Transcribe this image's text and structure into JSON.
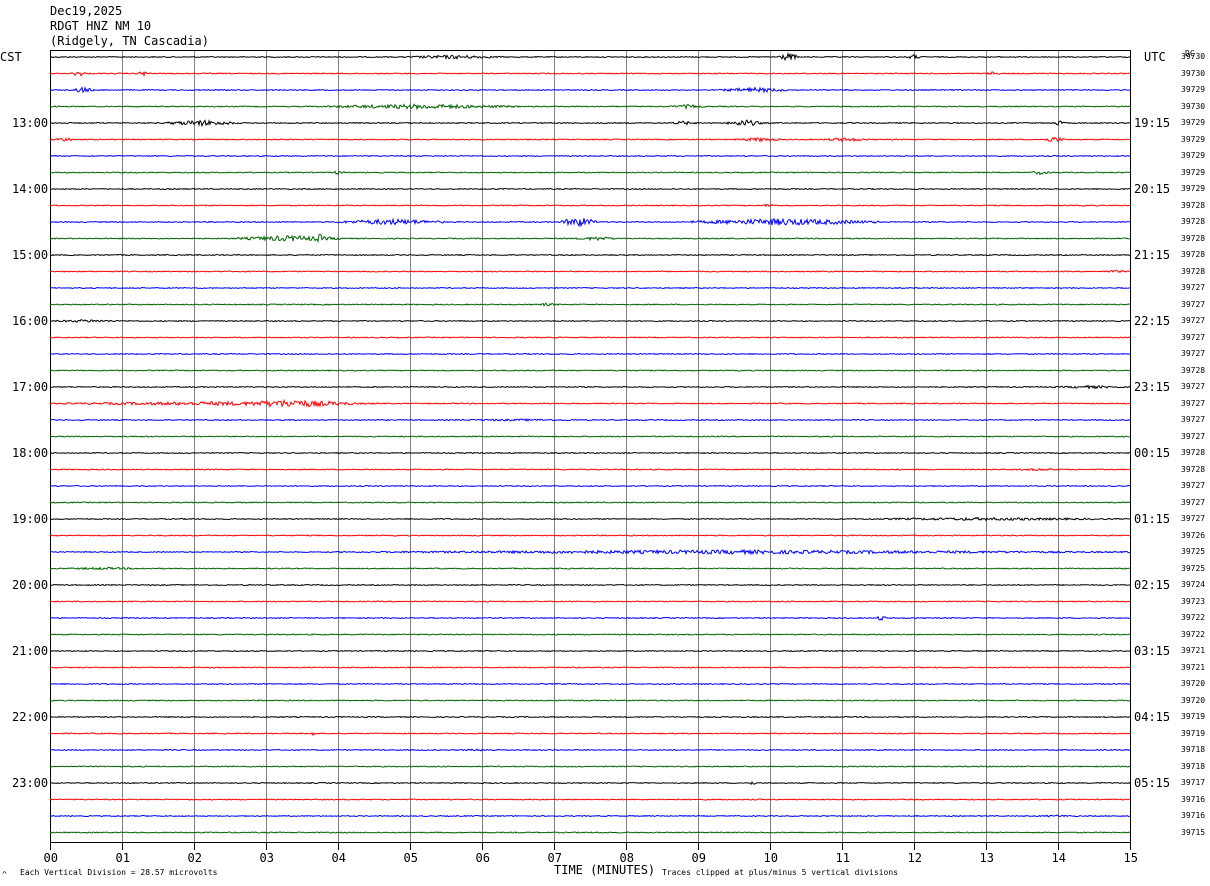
{
  "header": {
    "date": "Dec19,2025",
    "station": "RDGT HNZ NM 10",
    "location": "(Ridgely, TN Cascadia)"
  },
  "left_tz": "CST",
  "right_tz": "UTC",
  "dc_label": "DC",
  "footer": {
    "scale": "Each Vertical Division =   28.57 microvolts",
    "clip": "Traces clipped at plus/minus 5 vertical divisions",
    "corner_mark": "^"
  },
  "colors": {
    "trace_cycle": [
      "#000000",
      "#ff0000",
      "#0000ff",
      "#006400"
    ],
    "grid": "#808080"
  },
  "chart_data": {
    "type": "line",
    "title": "",
    "xlabel": "TIME (MINUTES)",
    "ylabel": "",
    "x_ticks": [
      "00",
      "01",
      "02",
      "03",
      "04",
      "05",
      "06",
      "07",
      "08",
      "09",
      "10",
      "11",
      "12",
      "13",
      "14",
      "15"
    ],
    "xlim": [
      0,
      15
    ],
    "grid": true,
    "left_time_labels": [
      {
        "row": 4,
        "label": "13:00"
      },
      {
        "row": 8,
        "label": "14:00"
      },
      {
        "row": 12,
        "label": "15:00"
      },
      {
        "row": 16,
        "label": "16:00"
      },
      {
        "row": 20,
        "label": "17:00"
      },
      {
        "row": 24,
        "label": "18:00"
      },
      {
        "row": 28,
        "label": "19:00"
      },
      {
        "row": 32,
        "label": "20:00"
      },
      {
        "row": 36,
        "label": "21:00"
      },
      {
        "row": 40,
        "label": "22:00"
      },
      {
        "row": 44,
        "label": "23:00"
      }
    ],
    "right_time_labels": [
      {
        "row": 4,
        "label": "19:15"
      },
      {
        "row": 8,
        "label": "20:15"
      },
      {
        "row": 12,
        "label": "21:15"
      },
      {
        "row": 16,
        "label": "22:15"
      },
      {
        "row": 20,
        "label": "23:15"
      },
      {
        "row": 24,
        "label": "00:15"
      },
      {
        "row": 28,
        "label": "01:15"
      },
      {
        "row": 32,
        "label": "02:15"
      },
      {
        "row": 36,
        "label": "03:15"
      },
      {
        "row": 40,
        "label": "04:15"
      },
      {
        "row": 44,
        "label": "05:15"
      }
    ],
    "dc_offsets": [
      39730,
      39730,
      39729,
      39730,
      39729,
      39729,
      39729,
      39729,
      39729,
      39728,
      39728,
      39728,
      39728,
      39728,
      39727,
      39727,
      39727,
      39727,
      39727,
      39728,
      39727,
      39727,
      39727,
      39727,
      39728,
      39728,
      39727,
      39727,
      39727,
      39726,
      39725,
      39725,
      39724,
      39723,
      39722,
      39722,
      39721,
      39721,
      39720,
      39720,
      39719,
      39719,
      39718,
      39718,
      39717,
      39716,
      39716,
      39715
    ],
    "events": [
      {
        "row": 0,
        "start": 4.9,
        "end": 6.3,
        "amp": 2.0
      },
      {
        "row": 0,
        "start": 10.1,
        "end": 10.4,
        "amp": 4.0
      },
      {
        "row": 0,
        "start": 11.9,
        "end": 12.1,
        "amp": 2.5
      },
      {
        "row": 1,
        "start": 0.3,
        "end": 0.5,
        "amp": 3.0
      },
      {
        "row": 1,
        "start": 1.2,
        "end": 1.4,
        "amp": 2.5
      },
      {
        "row": 1,
        "start": 13.0,
        "end": 13.2,
        "amp": 2.0
      },
      {
        "row": 2,
        "start": 0.3,
        "end": 0.6,
        "amp": 3.0
      },
      {
        "row": 2,
        "start": 9.3,
        "end": 10.3,
        "amp": 2.5
      },
      {
        "row": 3,
        "start": 3.8,
        "end": 6.5,
        "amp": 2.5
      },
      {
        "row": 3,
        "start": 8.6,
        "end": 9.1,
        "amp": 2.0
      },
      {
        "row": 4,
        "start": 1.6,
        "end": 2.6,
        "amp": 3.0
      },
      {
        "row": 4,
        "start": 8.6,
        "end": 9.0,
        "amp": 2.0
      },
      {
        "row": 4,
        "start": 9.4,
        "end": 9.9,
        "amp": 3.5
      },
      {
        "row": 4,
        "start": 13.9,
        "end": 14.1,
        "amp": 2.5
      },
      {
        "row": 5,
        "start": 0.0,
        "end": 0.4,
        "amp": 2.0
      },
      {
        "row": 5,
        "start": 9.5,
        "end": 10.2,
        "amp": 2.0
      },
      {
        "row": 5,
        "start": 10.7,
        "end": 11.4,
        "amp": 2.0
      },
      {
        "row": 5,
        "start": 13.8,
        "end": 14.1,
        "amp": 3.0
      },
      {
        "row": 7,
        "start": 3.9,
        "end": 4.1,
        "amp": 2.0
      },
      {
        "row": 7,
        "start": 13.6,
        "end": 13.9,
        "amp": 2.0
      },
      {
        "row": 9,
        "start": 9.9,
        "end": 10.1,
        "amp": 2.0
      },
      {
        "row": 10,
        "start": 4.0,
        "end": 5.5,
        "amp": 3.0
      },
      {
        "row": 10,
        "start": 7.1,
        "end": 7.6,
        "amp": 5.0
      },
      {
        "row": 10,
        "start": 8.9,
        "end": 11.5,
        "amp": 3.5
      },
      {
        "row": 11,
        "start": 2.6,
        "end": 4.1,
        "amp": 3.0
      },
      {
        "row": 11,
        "start": 3.7,
        "end": 3.8,
        "amp": 5.0
      },
      {
        "row": 11,
        "start": 7.3,
        "end": 7.9,
        "amp": 2.0
      },
      {
        "row": 13,
        "start": 14.6,
        "end": 15.0,
        "amp": 1.5
      },
      {
        "row": 15,
        "start": 6.7,
        "end": 7.1,
        "amp": 1.5
      },
      {
        "row": 16,
        "start": 0.0,
        "end": 1.0,
        "amp": 1.5
      },
      {
        "row": 20,
        "start": 13.9,
        "end": 15.0,
        "amp": 1.5
      },
      {
        "row": 21,
        "start": 0.0,
        "end": 4.6,
        "amp": 2.0
      },
      {
        "row": 21,
        "start": 2.5,
        "end": 4.2,
        "amp": 4.0
      },
      {
        "row": 22,
        "start": 5.0,
        "end": 8.0,
        "amp": 1.0
      },
      {
        "row": 25,
        "start": 13.3,
        "end": 14.2,
        "amp": 1.2
      },
      {
        "row": 28,
        "start": 11.0,
        "end": 15.0,
        "amp": 1.5
      },
      {
        "row": 30,
        "start": 4.0,
        "end": 15.0,
        "amp": 2.0
      },
      {
        "row": 31,
        "start": 0.0,
        "end": 1.5,
        "amp": 1.2
      },
      {
        "row": 34,
        "start": 11.5,
        "end": 11.6,
        "amp": 4.0
      },
      {
        "row": 41,
        "start": 3.6,
        "end": 3.7,
        "amp": 3.5
      },
      {
        "row": 42,
        "start": 5.5,
        "end": 6.5,
        "amp": 1.0
      },
      {
        "row": 44,
        "start": 9.7,
        "end": 9.8,
        "amp": 2.5
      },
      {
        "row": 46,
        "start": 13.5,
        "end": 14.5,
        "amp": 1.0
      }
    ]
  }
}
